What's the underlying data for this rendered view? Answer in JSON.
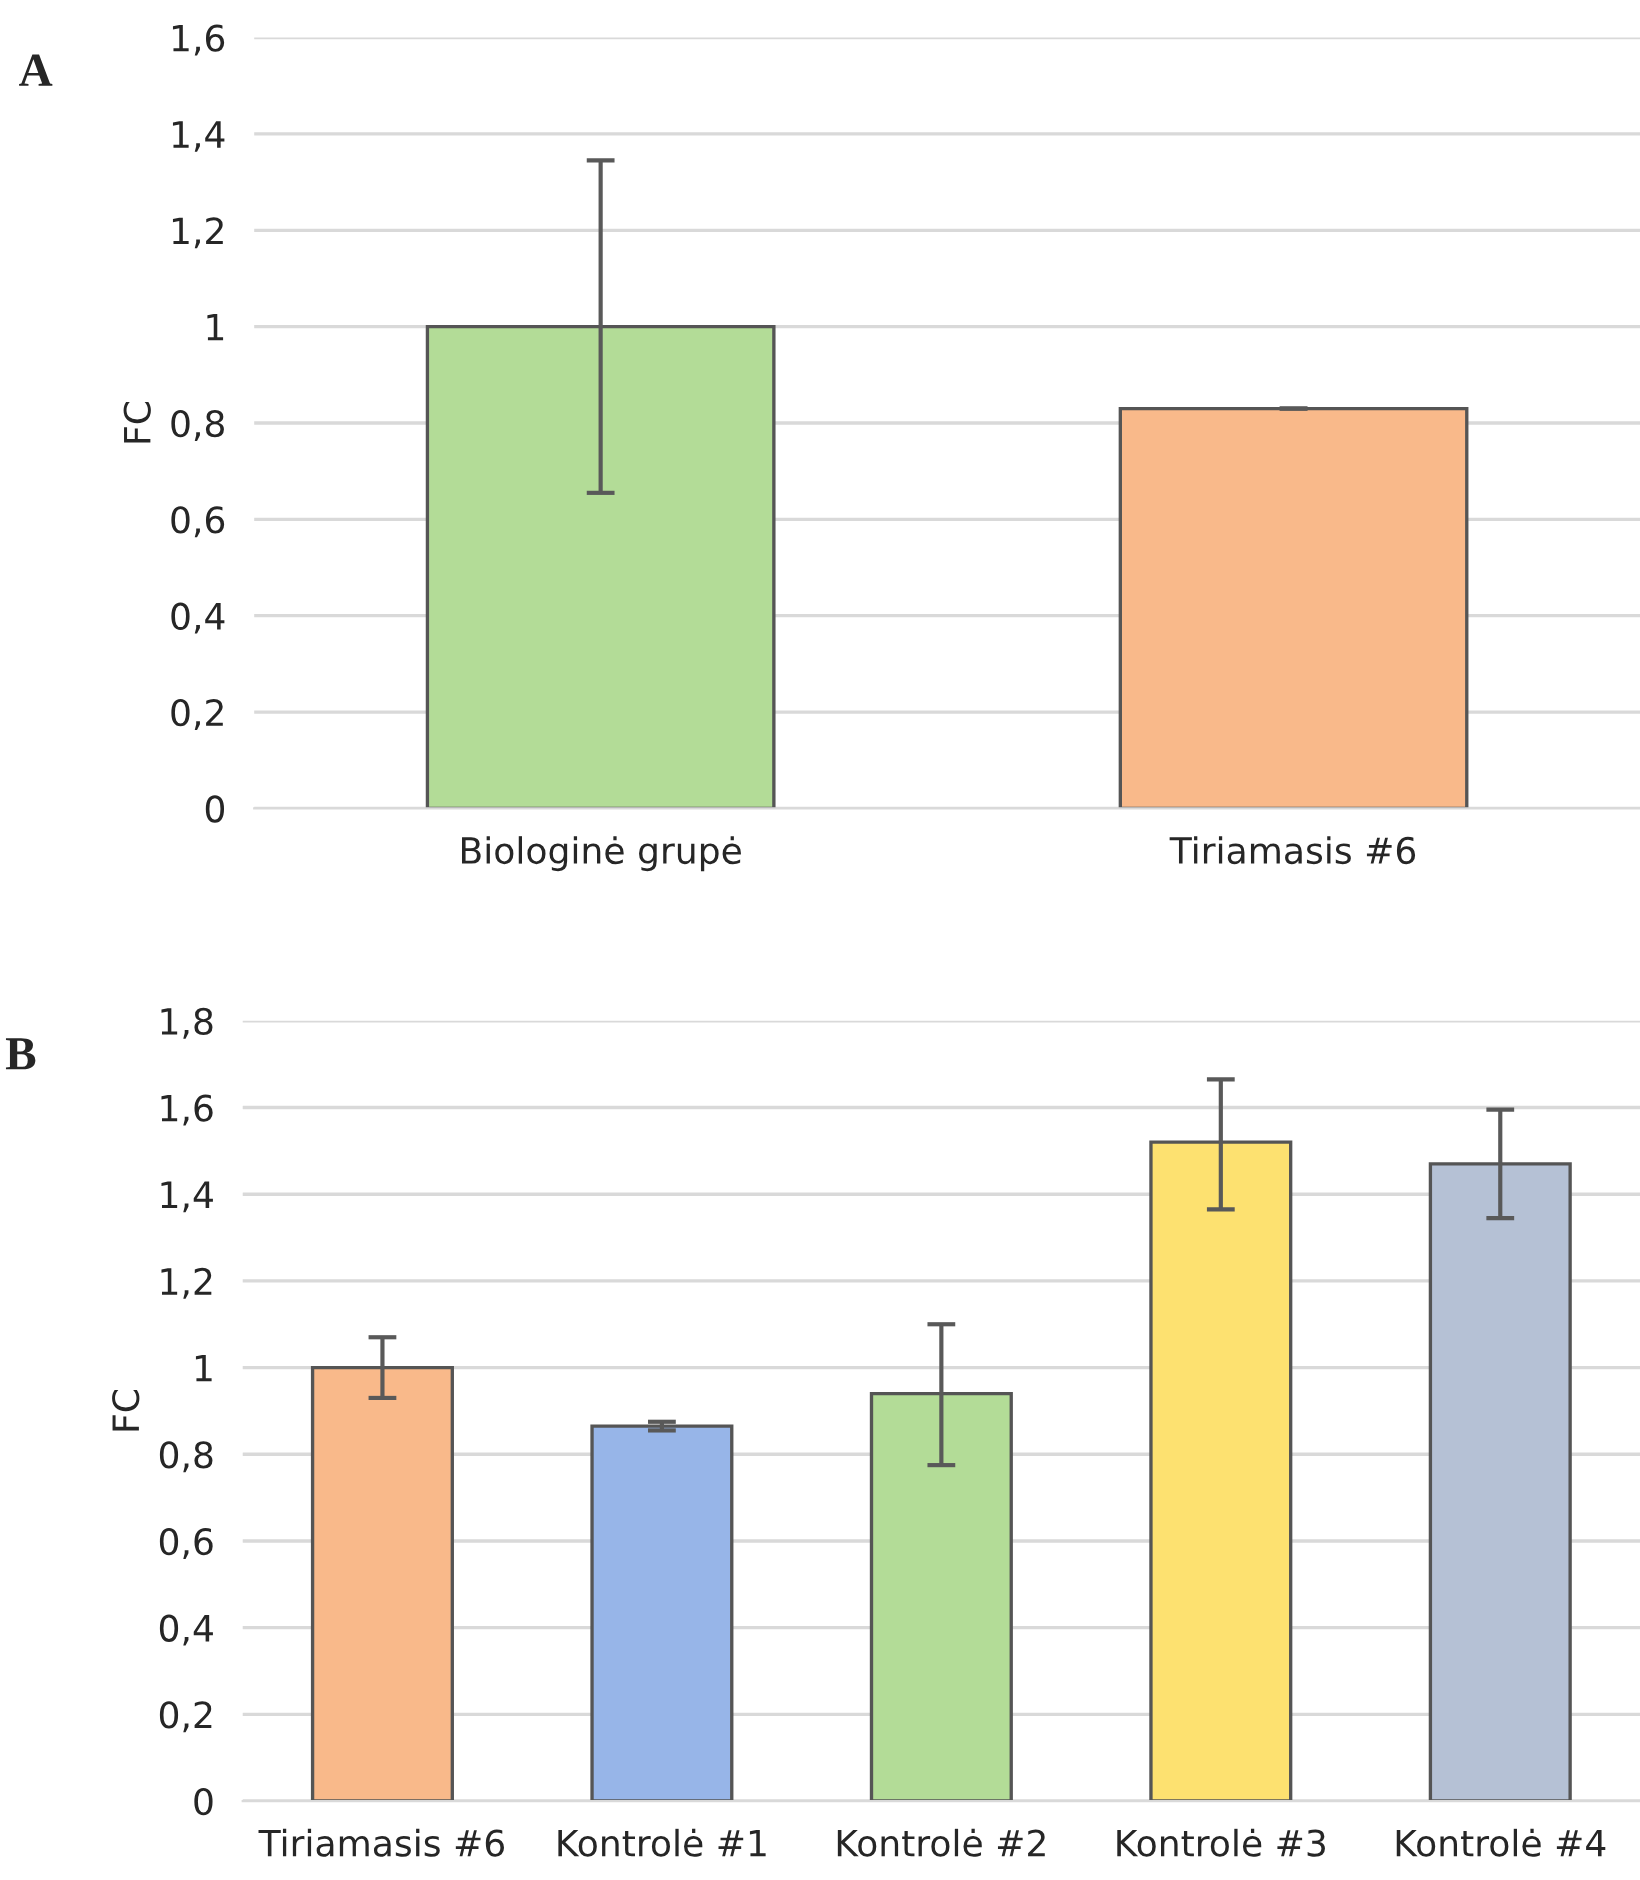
{
  "chart_data": [
    {
      "type": "bar",
      "title": "A",
      "ylabel": "FC",
      "categories": [
        "Biologinė grupė",
        "Tiriamasis #6"
      ],
      "values": [
        1.0,
        0.83
      ],
      "colors": [
        "#b3dc97",
        "#f9b98a"
      ],
      "errors": [
        0.345,
        0
      ],
      "ylim": [
        0,
        1.6
      ],
      "yticks": [
        {
          "value": 0,
          "label": "0"
        },
        {
          "value": 0.2,
          "label": "0,2"
        },
        {
          "value": 0.4,
          "label": "0,4"
        },
        {
          "value": 0.6,
          "label": "0,6"
        },
        {
          "value": 0.8,
          "label": "0,8"
        },
        {
          "value": 1,
          "label": "1"
        },
        {
          "value": 1.2,
          "label": "1,2"
        },
        {
          "value": 1.4,
          "label": "1,4"
        },
        {
          "value": 1.6,
          "label": "1,6"
        }
      ],
      "grid": "y"
    },
    {
      "type": "bar",
      "title": "B",
      "ylabel": "FC",
      "categories": [
        "Tiriamasis #6",
        "Kontrolė #1",
        "Kontrolė #2",
        "Kontrolė #3",
        "Kontrolė #4"
      ],
      "values": [
        1.0,
        0.865,
        0.94,
        1.52,
        1.47
      ],
      "colors": [
        "#f9b98a",
        "#97b5e8",
        "#b3dc97",
        "#fde170",
        "#b5c1d5"
      ],
      "errors": [
        0.07,
        0.01,
        [
          0.775,
          1.1
        ],
        [
          1.365,
          1.665
        ],
        0.125
      ],
      "ylim": [
        0,
        1.8
      ],
      "yticks": [
        {
          "value": 0,
          "label": "0"
        },
        {
          "value": 0.2,
          "label": "0,2"
        },
        {
          "value": 0.4,
          "label": "0,4"
        },
        {
          "value": 0.6,
          "label": "0,6"
        },
        {
          "value": 0.8,
          "label": "0,8"
        },
        {
          "value": 1,
          "label": "1"
        },
        {
          "value": 1.2,
          "label": "1,2"
        },
        {
          "value": 1.4,
          "label": "1,4"
        },
        {
          "value": 1.6,
          "label": "1,6"
        },
        {
          "value": 1.8,
          "label": "1,8"
        }
      ],
      "grid": "y"
    }
  ]
}
